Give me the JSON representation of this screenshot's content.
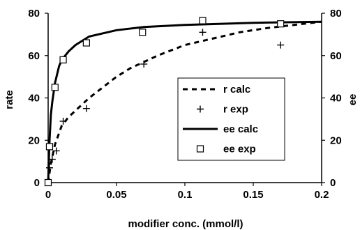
{
  "chart_data": {
    "type": "line",
    "title": "",
    "xlabel": "modifier conc. (mmol/l)",
    "ylabel_left": "rate",
    "ylabel_right": "ee",
    "xlim": [
      0,
      0.2
    ],
    "ylim_left": [
      0,
      80
    ],
    "ylim_right": [
      0,
      80
    ],
    "x_ticks": [
      "0",
      "0.05",
      "0.1",
      "0.15",
      "0.2"
    ],
    "y_ticks_left": [
      "0",
      "20",
      "40",
      "60",
      "80"
    ],
    "y_ticks_right": [
      "0",
      "20",
      "40",
      "60",
      "80"
    ],
    "grid": false,
    "legend_position": "center-right",
    "series": [
      {
        "name": "r calc",
        "style": "dashed-line",
        "axis": "left",
        "x": [
          0,
          0.002,
          0.005,
          0.01,
          0.015,
          0.02,
          0.03,
          0.04,
          0.05,
          0.06,
          0.07,
          0.08,
          0.1,
          0.12,
          0.14,
          0.16,
          0.18,
          0.2
        ],
        "y": [
          0,
          9,
          18,
          27,
          31,
          34,
          40,
          45,
          50,
          54,
          57,
          60,
          65,
          68,
          71,
          73,
          74.5,
          76
        ]
      },
      {
        "name": "r exp",
        "style": "plus-marker",
        "axis": "left",
        "x": [
          0,
          0.001,
          0.003,
          0.006,
          0.011,
          0.028,
          0.07,
          0.113,
          0.17
        ],
        "y": [
          0,
          7,
          11,
          15,
          29,
          35,
          56,
          71,
          65
        ]
      },
      {
        "name": "ee calc",
        "style": "solid-line",
        "axis": "right",
        "x": [
          0,
          0.001,
          0.002,
          0.003,
          0.005,
          0.008,
          0.01,
          0.015,
          0.02,
          0.03,
          0.05,
          0.07,
          0.1,
          0.15,
          0.2
        ],
        "y": [
          0,
          20,
          32,
          38,
          47,
          55,
          58,
          62,
          65,
          69,
          72,
          73.5,
          74.5,
          75.5,
          76
        ]
      },
      {
        "name": "ee exp",
        "style": "square-marker",
        "axis": "right",
        "x": [
          0,
          0.001,
          0.005,
          0.011,
          0.028,
          0.069,
          0.113,
          0.17
        ],
        "y": [
          0,
          17,
          45,
          58,
          66,
          71,
          76.5,
          75
        ]
      }
    ]
  }
}
